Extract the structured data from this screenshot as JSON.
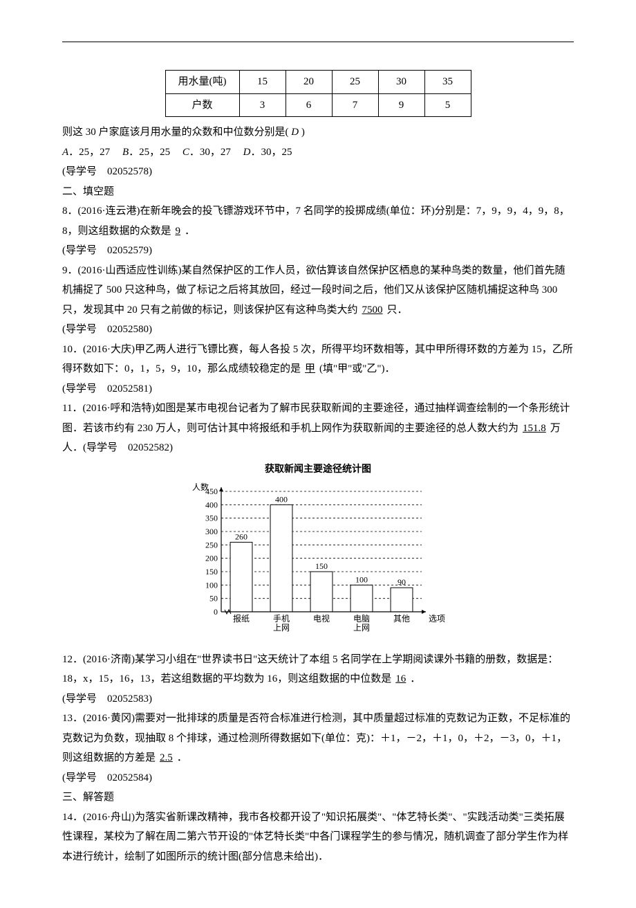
{
  "table": {
    "row1_label": "用水量(吨)",
    "row1": [
      "15",
      "20",
      "25",
      "30",
      "35"
    ],
    "row2_label": "户数",
    "row2": [
      "3",
      "6",
      "7",
      "9",
      "5"
    ]
  },
  "q7": {
    "stem": "则这 30 户家庭该月用水量的众数和中位数分别是( ",
    "answer_letter": "D",
    "stem_end": " )",
    "A": "．25，27",
    "B": "．25，25",
    "C": "．30，27",
    "D": "．30，25",
    "guide": "(导学号　02052578)"
  },
  "sec2": "二、填空题",
  "q8": {
    "text1": "8．(2016·连云港)在新年晚会的投飞镖游戏环节中，7 名同学的投掷成绩(单位：环)分别是：7，9，9，4，9，8，8，则这组数据的众数是",
    "ans": "9",
    "text2": "．",
    "guide": "(导学号　02052579)"
  },
  "q9": {
    "text1": "9．(2016·山西适应性训练)某自然保护区的工作人员，欲估算该自然保护区栖息的某种鸟类的数量，他们首先随机捕捉了 500 只这种鸟，做了标记之后将其放回，经过一段时间之后，他们又从该保护区随机捕捉这种鸟 300 只，发现其中 20 只有之前做的标记，则该保护区有这种鸟类大约",
    "ans": "7500",
    "text2": "只．",
    "guide": "(导学号　02052580)"
  },
  "q10": {
    "text1": "10．(2016·大庆)甲乙两人进行飞镖比赛，每人各投 5 次，所得平均环数相等，其中甲所得环数的方差为 15，乙所得环数如下：0，1，5，9，10，那么成绩较稳定的是",
    "ans": "甲",
    "text2": "(填\"甲\"或\"乙\")．",
    "guide": "(导学号　02052581)"
  },
  "q11": {
    "text1": "11．(2016·呼和浩特)如图是某市电视台记者为了解市民获取新闻的主要途径，通过抽样调查绘制的一个条形统计图．若该市约有 230 万人，则可估计其中将报纸和手机上网作为获取新闻的主要途径的总人数大约为",
    "ans": "151.8",
    "text2": "万人．(导学号　02052582)"
  },
  "chart": {
    "title": "获取新闻主要途径统计图",
    "ylabel": "人数",
    "xlabel": "选项",
    "ymax": 450,
    "ytick_step": 50,
    "yticks": [
      0,
      50,
      100,
      150,
      200,
      250,
      300,
      350,
      400,
      450
    ],
    "categories": [
      "报纸",
      "手机\n上网",
      "电视",
      "电脑\n上网",
      "其他"
    ],
    "values": [
      260,
      400,
      150,
      100,
      90
    ],
    "bar_fill": "#ffffff",
    "bar_stroke": "#000000",
    "grid_dash": "3,3",
    "axis_color": "#000000",
    "background": "#ffffff"
  },
  "q12": {
    "text1": "12．(2016·济南)某学习小组在\"世界读书日\"这天统计了本组 5 名同学在上学期阅读课外书籍的册数，数据是：18，x，15，16，13，若这组数据的平均数为 16，则这组数据的中位数是",
    "ans": "16",
    "text2": "．",
    "guide": "(导学号　02052583)"
  },
  "q13": {
    "text1": "13．(2016·黄冈)需要对一批排球的质量是否符合标准进行检测，其中质量超过标准的克数记为正数，不足标准的克数记为负数，现抽取 8 个排球，通过检测所得数据如下(单位：克)：＋1，－2，＋1，0，＋2，－3，0，＋1，则这组数据的方差是",
    "ans": "2.5",
    "text2": "．",
    "guide": "(导学号　02052584)"
  },
  "sec3": "三、解答题",
  "q14": {
    "text": "14．(2016·舟山)为落实省新课改精神，我市各校都开设了\"知识拓展类\"、\"体艺特长类\"、\"实践活动类\"三类拓展性课程，某校为了解在周二第六节开设的\"体艺特长类\"中各门课程学生的参与情况，随机调查了部分学生作为样本进行统计，绘制了如图所示的统计图(部分信息未给出)．"
  }
}
